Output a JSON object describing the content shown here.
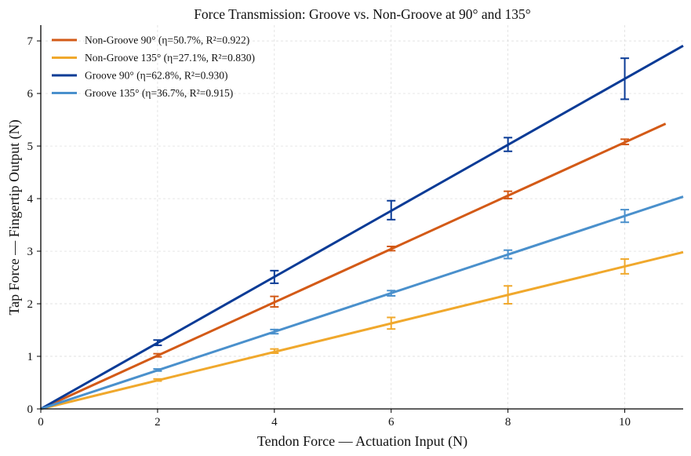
{
  "chart_data": {
    "type": "line",
    "title": "Force Transmission: Groove vs. Non-Groove at 90° and 135°",
    "xlabel": "Tendon Force — Actuation Input (N)",
    "ylabel": "Tap Force — Fingertip Output (N)",
    "xlim": [
      0,
      11
    ],
    "ylim": [
      0,
      7.3
    ],
    "xticks": [
      0,
      2,
      4,
      6,
      8,
      10
    ],
    "yticks": [
      0,
      1,
      2,
      3,
      4,
      5,
      6,
      7
    ],
    "grid": true,
    "legend_position": "top-left",
    "series": [
      {
        "name": "Non-Groove 90°  (η=50.7%, R²=0.922)",
        "color": "#d35a17",
        "fit_slope": 0.507,
        "fit_x_end": 10.7,
        "x": [
          2,
          4,
          6,
          8,
          10
        ],
        "y": [
          1.02,
          2.04,
          3.05,
          4.07,
          5.08
        ],
        "err": [
          0.03,
          0.1,
          0.04,
          0.07,
          0.05
        ]
      },
      {
        "name": "Non-Groove 135°  (η=27.1%, R²=0.830)",
        "color": "#f0a82c",
        "fit_slope": 0.271,
        "fit_x_end": 11,
        "x": [
          2,
          4,
          6,
          8,
          10
        ],
        "y": [
          0.55,
          1.1,
          1.63,
          2.17,
          2.71
        ],
        "err": [
          0.02,
          0.04,
          0.11,
          0.17,
          0.14
        ]
      },
      {
        "name": "Groove 90°  (η=62.8%, R²=0.930)",
        "color": "#0a3b96",
        "fit_slope": 0.628,
        "fit_x_end": 11,
        "x": [
          2,
          4,
          6,
          8,
          10
        ],
        "y": [
          1.26,
          2.51,
          3.78,
          5.03,
          6.28
        ],
        "err": [
          0.05,
          0.12,
          0.18,
          0.13,
          0.39
        ]
      },
      {
        "name": "Groove 135°  (η=36.7%, R²=0.915)",
        "color": "#4a90cc",
        "fit_slope": 0.367,
        "fit_x_end": 11,
        "x": [
          2,
          4,
          6,
          8,
          10
        ],
        "y": [
          0.74,
          1.47,
          2.2,
          2.94,
          3.67
        ],
        "err": [
          0.02,
          0.04,
          0.05,
          0.08,
          0.12
        ]
      }
    ]
  }
}
